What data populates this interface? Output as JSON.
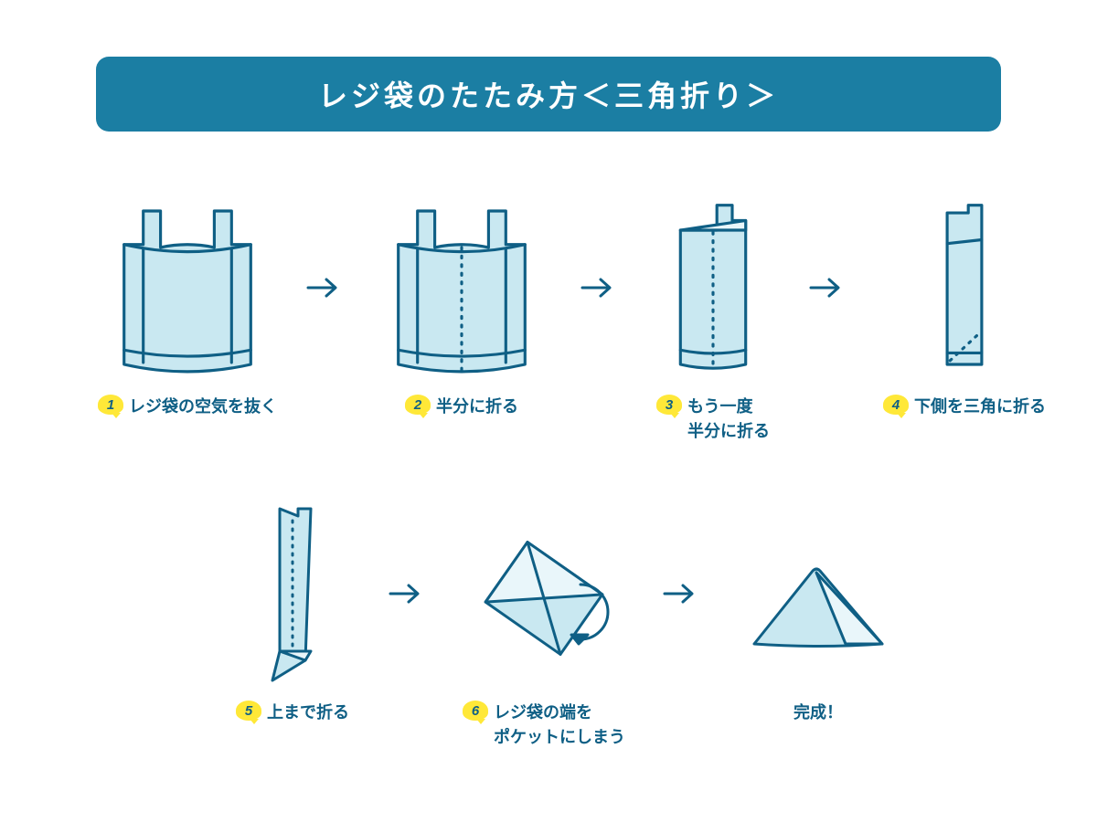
{
  "title": "レジ袋のたたみ方＜三角折り＞",
  "title_fontsize": 32,
  "colors": {
    "banner_bg": "#1b7ea3",
    "stroke": "#0f5f85",
    "fill": "#c9e8f1",
    "fill_light": "#e9f6fa",
    "badge_bg": "#ffe838",
    "badge_text": "#0f5f85",
    "caption_text": "#0f5f85",
    "arrow": "#0f5f85",
    "background": "#ffffff"
  },
  "stroke_width": 3,
  "badge_fontsize": 15,
  "caption_fontsize": 18,
  "steps": [
    {
      "n": "1",
      "label": "レジ袋の空気を抜く",
      "shape": "bag-full"
    },
    {
      "n": "2",
      "label": "半分に折る",
      "shape": "bag-full-fold"
    },
    {
      "n": "3",
      "label": "もう一度\n半分に折る",
      "shape": "bag-half"
    },
    {
      "n": "4",
      "label": "下側を三角に折る",
      "shape": "strip"
    },
    {
      "n": "5",
      "label": "上まで折る",
      "shape": "strip-folding"
    },
    {
      "n": "6",
      "label": "レジ袋の端を\nポケットにしまう",
      "shape": "tuck"
    },
    {
      "n": "",
      "label": "完成！",
      "shape": "triangle"
    }
  ]
}
